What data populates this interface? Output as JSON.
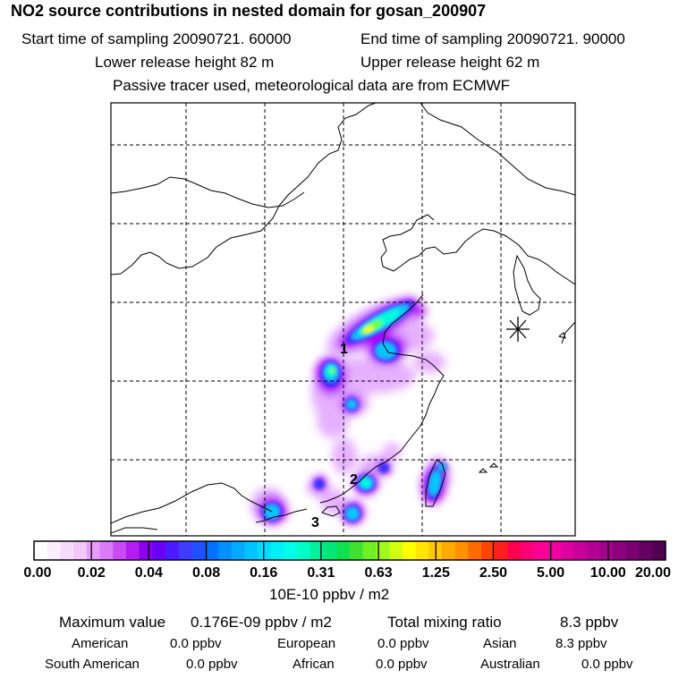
{
  "header": {
    "title": "NO2 source contributions in nested domain for gosan_200907",
    "start_label": "Start time of sampling 20090721. 60000",
    "end_label": "End time of sampling 20090721. 90000",
    "lower_label": "Lower release height   82 m",
    "upper_label": "Upper release height   62 m",
    "tracer_note": "Passive tracer used, meteorological data are from ECMWF"
  },
  "map": {
    "receptor_marker": "asterisk-marker",
    "source_labels": [
      "1",
      "2",
      "3"
    ],
    "plume_colors": [
      "#e6b0ff",
      "#b400ff",
      "#3c32ff",
      "#00c8ff",
      "#00ffd8",
      "#70ff30",
      "#ffff00"
    ]
  },
  "legend": {
    "units": "10E-10 ppbv / m2",
    "tick_labels": [
      "0.00",
      "0.02",
      "0.04",
      "0.08",
      "0.16",
      "0.31",
      "0.63",
      "1.25",
      "2.50",
      "5.00",
      "10.00",
      "20.00"
    ],
    "colors": [
      "#ffffff",
      "#fbeefd",
      "#f6dcfb",
      "#f2c8f8",
      "#e69ef8",
      "#d97cf8",
      "#c94bf5",
      "#b21df0",
      "#8c00f0",
      "#6a00f5",
      "#4a1bff",
      "#3f3cff",
      "#2050ff",
      "#0070ff",
      "#0090ff",
      "#00aaff",
      "#00c4ff",
      "#00dcff",
      "#00f0f8",
      "#00ffe6",
      "#00ffc4",
      "#00f09a",
      "#00e678",
      "#10e050",
      "#40e030",
      "#70f020",
      "#a0f820",
      "#d0ff10",
      "#ffff00",
      "#ffe600",
      "#ffc800",
      "#ffaa00",
      "#ff9000",
      "#ff6a00",
      "#ff4400",
      "#ff1e1e",
      "#ff0050",
      "#ff0078",
      "#ff0096",
      "#f000a0",
      "#e000a0",
      "#c8009a",
      "#b40094",
      "#a0008a",
      "#8c0080",
      "#780070",
      "#640060",
      "#500050"
    ]
  },
  "summary": {
    "max_label": "Maximum value",
    "max_value": "0.176E-09 ppbv / m2",
    "total_label": "Total mixing ratio",
    "total_value": "8.3 ppbv",
    "regions": [
      {
        "name": "American",
        "value": "0.0 ppbv"
      },
      {
        "name": "European",
        "value": "0.0 ppbv"
      },
      {
        "name": "Asian",
        "value": "8.3 ppbv"
      },
      {
        "name": "South American",
        "value": "0.0 ppbv"
      },
      {
        "name": "African",
        "value": "0.0 ppbv"
      },
      {
        "name": "Australian",
        "value": "0.0 ppbv"
      }
    ]
  }
}
